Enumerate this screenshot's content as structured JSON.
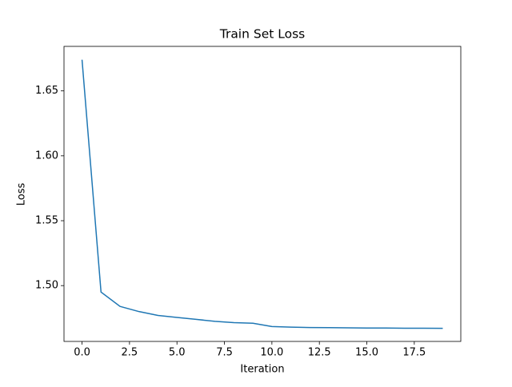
{
  "chart_data": {
    "type": "line",
    "title": "Train Set Loss",
    "x_label": "Iteration",
    "y_label": "Loss",
    "x": [
      0,
      1,
      2,
      3,
      4,
      5,
      6,
      7,
      8,
      9,
      10,
      11,
      12,
      13,
      14,
      15,
      16,
      17,
      18,
      19
    ],
    "series": [
      {
        "name": "loss",
        "color": "#1f77b4",
        "values": [
          1.674,
          1.495,
          1.484,
          1.48,
          1.477,
          1.4755,
          1.474,
          1.4725,
          1.4715,
          1.471,
          1.4685,
          1.468,
          1.4677,
          1.4676,
          1.4675,
          1.4673,
          1.4673,
          1.4672,
          1.4672,
          1.4671
        ]
      }
    ],
    "xlim": [
      -0.95,
      19.95
    ],
    "xticks": [
      {
        "value": 0,
        "label": "0.0"
      },
      {
        "value": 2.5,
        "label": "2.5"
      },
      {
        "value": 5,
        "label": "5.0"
      },
      {
        "value": 7.5,
        "label": "7.5"
      },
      {
        "value": 10,
        "label": "10.0"
      },
      {
        "value": 12.5,
        "label": "12.5"
      },
      {
        "value": 15,
        "label": "15.0"
      },
      {
        "value": 17.5,
        "label": "17.5"
      }
    ],
    "ylim": [
      1.457,
      1.6843
    ],
    "yticks": [
      {
        "value": 1.5,
        "label": "1.50"
      },
      {
        "value": 1.55,
        "label": "1.55"
      },
      {
        "value": 1.6,
        "label": "1.60"
      },
      {
        "value": 1.65,
        "label": "1.65"
      }
    ],
    "grid": false
  }
}
